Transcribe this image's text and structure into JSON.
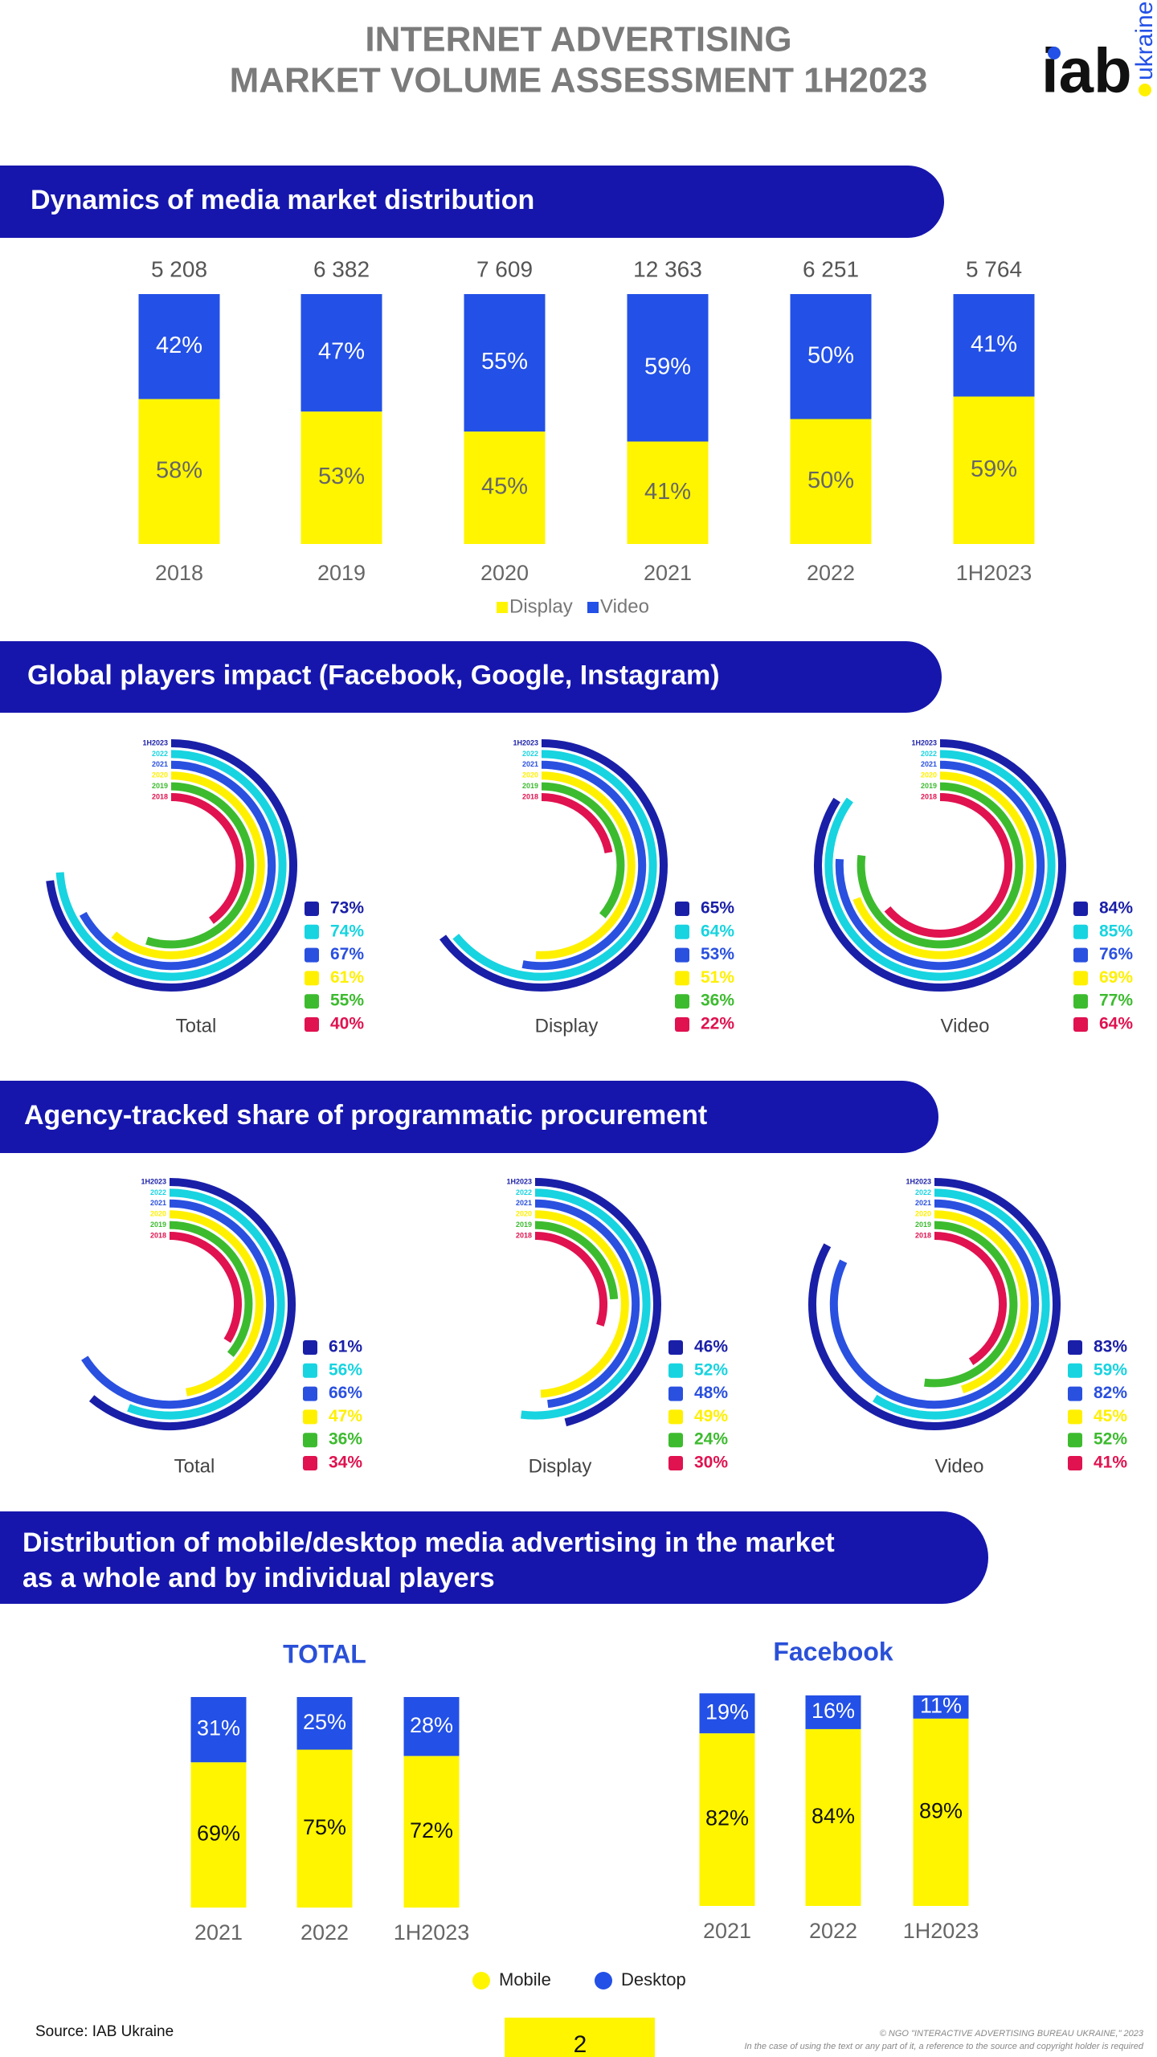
{
  "header": {
    "title_lines": [
      "INTERNET ADVERTISING",
      "MARKET VOLUME ASSESSMENT 1H2023"
    ],
    "logo": "iab",
    "logo_sub": "ukraine"
  },
  "sections": [
    [
      "Dynamics of media market distribution"
    ],
    [
      "Global players impact (Facebook, Google, Instagram)"
    ],
    [
      "Agency-tracked share of programmatic procurement"
    ],
    [
      "Distribution of mobile/desktop media advertising in the market",
      "as a whole and by individual players"
    ]
  ],
  "chart_data": [
    {
      "type": "stacked_bar",
      "categories": [
        "2018",
        "2019",
        "2020",
        "2021",
        "2022",
        "1H2023"
      ],
      "totals": [
        {
          "value": 5208,
          "label": "5 208"
        },
        {
          "value": 6382,
          "label": "6 382"
        },
        {
          "value": 7609,
          "label": "7 609"
        },
        {
          "value": 12363,
          "label": "12 363"
        },
        {
          "value": 6251,
          "label": "6 251"
        },
        {
          "value": 5764,
          "label": "5 764"
        }
      ],
      "series": [
        {
          "name": "Display",
          "color": "#fff500",
          "values": [
            58,
            53,
            45,
            41,
            50,
            59
          ],
          "value_labels": [
            "58%",
            "53%",
            "45%",
            "41%",
            "50%",
            "59%"
          ]
        },
        {
          "name": "Video",
          "color": "#2350e6",
          "values": [
            42,
            47,
            55,
            59,
            50,
            41
          ],
          "value_labels": [
            "42%",
            "47%",
            "55%",
            "59%",
            "50%",
            "41%"
          ]
        }
      ]
    },
    {
      "type": "radial_bar",
      "title": "Total",
      "categories": [
        "1H2023",
        "2022",
        "2021",
        "2020",
        "2019",
        "2018"
      ],
      "colors": [
        "#1a1fa8",
        "#17d4e0",
        "#2a50e0",
        "#fff000",
        "#3dbb2f",
        "#e0124f"
      ],
      "values": [
        73,
        74,
        67,
        61,
        55,
        40
      ],
      "value_labels": [
        "73%",
        "74%",
        "67%",
        "61%",
        "55%",
        "40%"
      ]
    },
    {
      "type": "radial_bar",
      "title": "Display",
      "categories": [
        "1H2023",
        "2022",
        "2021",
        "2020",
        "2019",
        "2018"
      ],
      "colors": [
        "#1a1fa8",
        "#17d4e0",
        "#2a50e0",
        "#fff000",
        "#3dbb2f",
        "#e0124f"
      ],
      "values": [
        65,
        64,
        53,
        51,
        36,
        22
      ],
      "value_labels": [
        "65%",
        "64%",
        "53%",
        "51%",
        "36%",
        "22%"
      ]
    },
    {
      "type": "radial_bar",
      "title": "Video",
      "categories": [
        "1H2023",
        "2022",
        "2021",
        "2020",
        "2019",
        "2018"
      ],
      "colors": [
        "#1a1fa8",
        "#17d4e0",
        "#2a50e0",
        "#fff000",
        "#3dbb2f",
        "#e0124f"
      ],
      "values": [
        84,
        85,
        76,
        69,
        77,
        64
      ],
      "value_labels": [
        "84%",
        "85%",
        "76%",
        "69%",
        "77%",
        "64%"
      ]
    },
    {
      "type": "radial_bar",
      "title": "Total",
      "categories": [
        "1H2023",
        "2022",
        "2021",
        "2020",
        "2019",
        "2018"
      ],
      "colors": [
        "#1a1fa8",
        "#17d4e0",
        "#2a50e0",
        "#fff000",
        "#3dbb2f",
        "#e0124f"
      ],
      "values": [
        61,
        56,
        66,
        47,
        36,
        34
      ],
      "value_labels": [
        "61%",
        "56%",
        "66%",
        "47%",
        "36%",
        "34%"
      ]
    },
    {
      "type": "radial_bar",
      "title": "Display",
      "categories": [
        "1H2023",
        "2022",
        "2021",
        "2020",
        "2019",
        "2018"
      ],
      "colors": [
        "#1a1fa8",
        "#17d4e0",
        "#2a50e0",
        "#fff000",
        "#3dbb2f",
        "#e0124f"
      ],
      "values": [
        46,
        52,
        48,
        49,
        24,
        30
      ],
      "value_labels": [
        "46%",
        "52%",
        "48%",
        "49%",
        "24%",
        "30%"
      ]
    },
    {
      "type": "radial_bar",
      "title": "Video",
      "categories": [
        "1H2023",
        "2022",
        "2021",
        "2020",
        "2019",
        "2018"
      ],
      "colors": [
        "#1a1fa8",
        "#17d4e0",
        "#2a50e0",
        "#fff000",
        "#3dbb2f",
        "#e0124f"
      ],
      "values": [
        83,
        59,
        82,
        45,
        52,
        41
      ],
      "value_labels": [
        "83%",
        "59%",
        "82%",
        "45%",
        "52%",
        "41%"
      ]
    },
    {
      "type": "stacked_bar",
      "title": "TOTAL",
      "categories": [
        "2021",
        "2022",
        "1H2023"
      ],
      "series": [
        {
          "name": "Mobile",
          "color": "#fff500",
          "values": [
            69,
            75,
            72
          ],
          "value_labels": [
            "69%",
            "75%",
            "72%"
          ]
        },
        {
          "name": "Desktop",
          "color": "#2350e6",
          "values": [
            31,
            25,
            28
          ],
          "value_labels": [
            "31%",
            "25%",
            "28%"
          ]
        }
      ]
    },
    {
      "type": "stacked_bar",
      "title": "Facebook",
      "categories": [
        "2021",
        "2022",
        "1H2023"
      ],
      "series": [
        {
          "color": "#fff500",
          "values": [
            82,
            84,
            89
          ],
          "value_labels": [
            "82%",
            "84%",
            "89%"
          ]
        },
        {
          "color": "#2350e6",
          "values": [
            19,
            16,
            11
          ],
          "value_labels": [
            "19%",
            "16%",
            "11%"
          ]
        }
      ]
    }
  ],
  "footer": {
    "source": "Source: IAB Ukraine",
    "page": "2",
    "copyright": "© NGO \"INTERACTIVE ADVERTISING BUREAU UKRAINE,\" 2023",
    "notice": "In the case of using the text or any part of it, a reference to the source and copyright holder is required"
  }
}
